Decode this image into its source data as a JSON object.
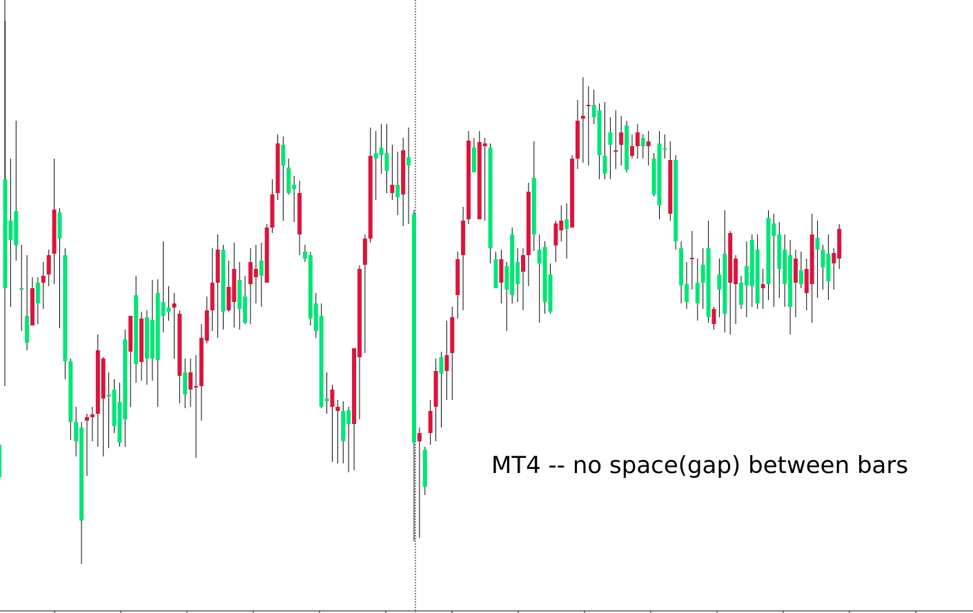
{
  "chart_data": {
    "type": "candlestick",
    "title": "",
    "annotation": "MT4 -- no space(gap) between bars",
    "grid": false,
    "legend": false,
    "colors": {
      "bull": "#00E676",
      "bear": "#DC143C",
      "wick": "#000000",
      "separator": "#000000"
    },
    "ylim": [
      0,
      889
    ],
    "period_separator_after_bar": 75,
    "ohlc": [
      [
        418,
        260,
        30,
        418
      ],
      [
        348,
        320,
        230,
        445
      ],
      [
        356,
        306,
        175,
        378
      ],
      [
        420,
        418,
        355,
        480
      ],
      [
        497,
        458,
        370,
        508
      ],
      [
        418,
        472,
        402,
        472
      ],
      [
        440,
        410,
        402,
        470
      ],
      [
        400,
        410,
        380,
        448
      ],
      [
        370,
        398,
        362,
        415
      ],
      [
        304,
        368,
        230,
        412
      ],
      [
        346,
        308,
        302,
        476
      ],
      [
        524,
        370,
        360,
        550
      ],
      [
        612,
        524,
        520,
        638
      ],
      [
        640,
        612,
        590,
        662
      ],
      [
        755,
        620,
        612,
        818
      ],
      [
        605,
        610,
        600,
        690
      ],
      [
        601,
        605,
        590,
        640
      ],
      [
        508,
        600,
        485,
        648
      ],
      [
        520,
        578,
        518,
        662
      ],
      [
        575,
        572,
        540,
        650
      ],
      [
        618,
        565,
        550,
        628
      ],
      [
        642,
        583,
        555,
        648
      ],
      [
        608,
        492,
        478,
        648
      ],
      [
        458,
        510,
        465,
        590
      ],
      [
        528,
        428,
        400,
        555
      ],
      [
        462,
        525,
        452,
        552
      ],
      [
        520,
        460,
        450,
        558
      ],
      [
        520,
        464,
        406,
        552
      ],
      [
        522,
        425,
        405,
        590
      ],
      [
        458,
        438,
        350,
        482
      ],
      [
        452,
        446,
        415,
        465
      ],
      [
        440,
        446,
        425,
        520
      ],
      [
        455,
        545,
        450,
        585
      ],
      [
        572,
        540,
        520,
        592
      ],
      [
        540,
        565,
        520,
        590
      ],
      [
        560,
        560,
        515,
        664
      ],
      [
        490,
        560,
        470,
        610
      ],
      [
        450,
        494,
        430,
        498
      ],
      [
        410,
        450,
        360,
        480
      ],
      [
        362,
        410,
        340,
        490
      ],
      [
        452,
        362,
        355,
        478
      ],
      [
        416,
        450,
        378,
        452
      ],
      [
        390,
        438,
        352,
        475
      ],
      [
        448,
        406,
        380,
        478
      ],
      [
        468,
        430,
        400,
        470
      ],
      [
        380,
        412,
        360,
        470
      ],
      [
        390,
        402,
        355,
        440
      ],
      [
        400,
        378,
        352,
        445
      ],
      [
        330,
        410,
        325,
        408
      ],
      [
        282,
        330,
        260,
        338
      ],
      [
        208,
        280,
        195,
        290
      ],
      [
        240,
        210,
        198,
        320
      ],
      [
        280,
        243,
        230,
        282
      ],
      [
        274,
        268,
        255,
        322
      ],
      [
        280,
        340,
        262,
        370
      ],
      [
        375,
        365,
        355,
        380
      ],
      [
        462,
        370,
        365,
        472
      ],
      [
        480,
        440,
        425,
        490
      ],
      [
        590,
        458,
        440,
        592
      ],
      [
        582,
        578,
        540,
        600
      ],
      [
        565,
        590,
        558,
        670
      ],
      [
        590,
        596,
        580,
        672
      ],
      [
        640,
        596,
        582,
        672
      ],
      [
        615,
        595,
        590,
        685
      ],
      [
        505,
        615,
        505,
        682
      ],
      [
        390,
        518,
        385,
        608
      ],
      [
        346,
        384,
        340,
        512
      ],
      [
        226,
        346,
        185,
        352
      ],
      [
        230,
        222,
        190,
        290
      ],
      [
        225,
        214,
        180,
        252
      ],
      [
        248,
        222,
        180,
        280
      ],
      [
        268,
        280,
        210,
        290
      ],
      [
        286,
        268,
        220,
        312
      ],
      [
        218,
        282,
        200,
        328
      ],
      [
        240,
        228,
        185,
        325
      ],
      [
        642,
        310,
        305,
        785
      ],
      [
        628,
        640,
        620,
        780
      ],
      [
        706,
        652,
        648,
        718
      ],
      [
        596,
        628,
        580,
        645
      ],
      [
        538,
        590,
        520,
        640
      ],
      [
        542,
        518,
        510,
        620
      ],
      [
        515,
        538,
        465,
        580
      ],
      [
        460,
        512,
        445,
        580
      ],
      [
        376,
        428,
        365,
        462
      ],
      [
        320,
        370,
        300,
        450
      ],
      [
        204,
        318,
        190,
        325
      ],
      [
        250,
        214,
        200,
        250
      ],
      [
        206,
        318,
        190,
        318
      ],
      [
        208,
        212,
        200,
        320
      ],
      [
        360,
        214,
        208,
        382
      ],
      [
        418,
        376,
        365,
        418
      ],
      [
        376,
        410,
        362,
        440
      ],
      [
        420,
        386,
        380,
        480
      ],
      [
        428,
        340,
        330,
        440
      ],
      [
        412,
        380,
        360,
        438
      ],
      [
        370,
        394,
        360,
        450
      ],
      [
        278,
        370,
        265,
        415
      ],
      [
        340,
        258,
        205,
        364
      ],
      [
        382,
        362,
        340,
        468
      ],
      [
        438,
        358,
        350,
        455
      ],
      [
        452,
        398,
        382,
        455
      ],
      [
        324,
        356,
        320,
        380
      ],
      [
        320,
        334,
        298,
        350
      ],
      [
        332,
        318,
        295,
        375
      ],
      [
        230,
        330,
        225,
        330
      ],
      [
        175,
        230,
        145,
        245
      ],
      [
        168,
        172,
        112,
        236
      ],
      [
        152,
        154,
        125,
        240
      ],
      [
        170,
        152,
        130,
        180
      ],
      [
        225,
        160,
        150,
        260
      ],
      [
        252,
        226,
        148,
        260
      ],
      [
        210,
        192,
        170,
        260
      ],
      [
        218,
        218,
        160,
        245
      ],
      [
        192,
        210,
        168,
        240
      ],
      [
        246,
        182,
        175,
        250
      ],
      [
        212,
        226,
        195,
        230
      ],
      [
        192,
        212,
        180,
        230
      ],
      [
        212,
        200,
        195,
        230
      ],
      [
        205,
        212,
        190,
        240
      ],
      [
        282,
        230,
        222,
        285
      ],
      [
        298,
        208,
        190,
        318
      ],
      [
        216,
        215,
        195,
        230
      ],
      [
        232,
        310,
        205,
        320
      ],
      [
        350,
        232,
        225,
        362
      ],
      [
        414,
        360,
        350,
        440
      ],
      [
        438,
        412,
        380,
        448
      ],
      [
        374,
        376,
        335,
        420
      ],
      [
        440,
        410,
        375,
        465
      ],
      [
        410,
        384,
        360,
        448
      ],
      [
        460,
        360,
        320,
        468
      ],
      [
        448,
        470,
        445,
        478
      ],
      [
        420,
        398,
        375,
        460
      ],
      [
        455,
        368,
        305,
        482
      ],
      [
        338,
        410,
        335,
        485
      ],
      [
        375,
        412,
        370,
        470
      ],
      [
        442,
        410,
        400,
        448
      ],
      [
        414,
        386,
        350,
        460
      ],
      [
        415,
        348,
        340,
        445
      ],
      [
        440,
        362,
        340,
        448
      ],
      [
        412,
        418,
        390,
        448
      ],
      [
        412,
        316,
        305,
        435
      ],
      [
        342,
        324,
        310,
        445
      ],
      [
        390,
        340,
        322,
        432
      ],
      [
        412,
        362,
        340,
        445
      ],
      [
        445,
        370,
        348,
        485
      ],
      [
        375,
        410,
        362,
        460
      ],
      [
        412,
        392,
        365,
        418
      ],
      [
        390,
        425,
        375,
        450
      ],
      [
        340,
        412,
        310,
        468
      ],
      [
        362,
        345,
        320,
        432
      ],
      [
        388,
        362,
        355,
        420
      ],
      [
        408,
        368,
        340,
        435
      ],
      [
        367,
        382,
        360,
        420
      ],
      [
        332,
        375,
        325,
        390
      ]
    ]
  }
}
